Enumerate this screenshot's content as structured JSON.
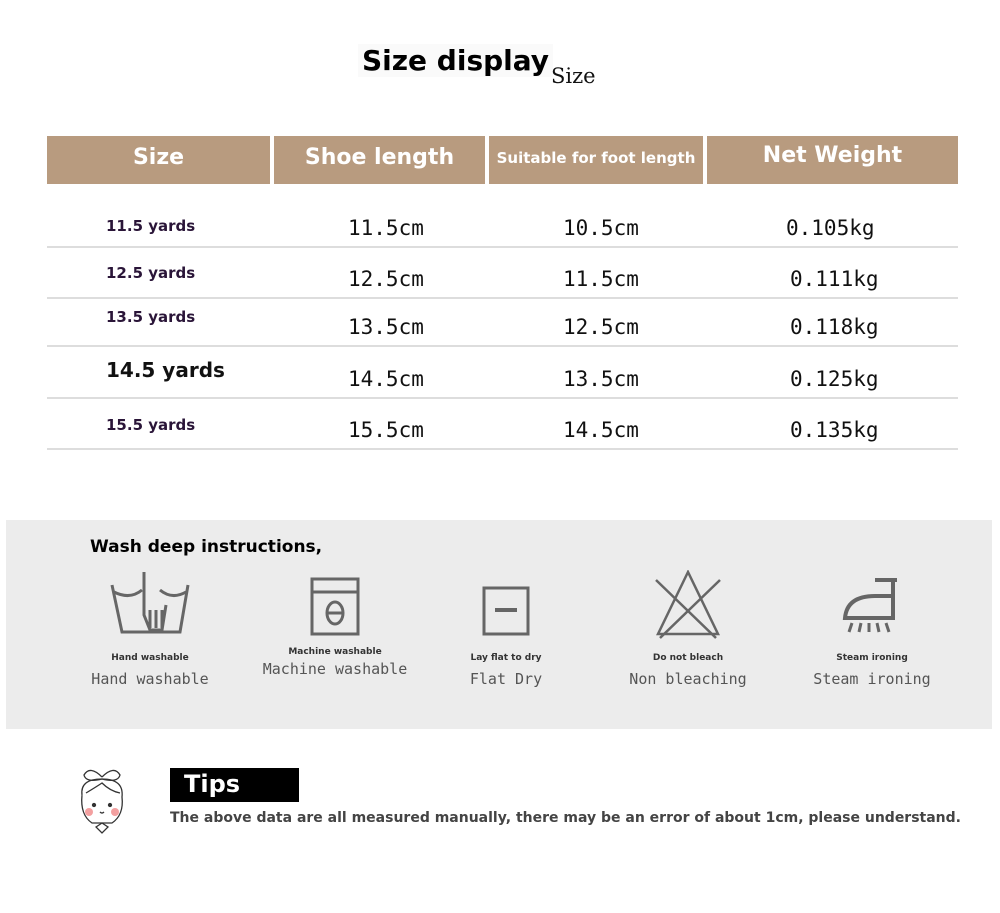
{
  "title": "Size display",
  "subtitle": "Size",
  "table": {
    "headers": [
      "Size",
      "Shoe length",
      "Suitable for foot length",
      "Net Weight"
    ],
    "rows": [
      [
        "11.5 yards",
        "11.5cm",
        "10.5cm",
        "0.105kg"
      ],
      [
        "12.5 yards",
        "12.5cm",
        "11.5cm",
        "0.111kg"
      ],
      [
        "13.5 yards",
        "13.5cm",
        "12.5cm",
        "0.118kg"
      ],
      [
        "14.5 yards",
        "14.5cm",
        "13.5cm",
        "0.125kg"
      ],
      [
        "15.5 yards",
        "15.5cm",
        "14.5cm",
        "0.135kg"
      ]
    ]
  },
  "header_color": "#b89b7f",
  "wash": {
    "title": "Wash deep instructions,",
    "items": [
      {
        "icon": "hand-wash-icon",
        "small": "Hand washable",
        "label": "Hand washable"
      },
      {
        "icon": "washing-machine-icon",
        "small": "Machine washable",
        "label": "Machine washable"
      },
      {
        "icon": "flat-dry-icon",
        "small": "Lay flat to dry",
        "label": "Flat Dry"
      },
      {
        "icon": "do-not-bleach-icon",
        "small": "Do not bleach",
        "label": "Non bleaching"
      },
      {
        "icon": "steam-iron-icon",
        "small": "Steam ironing",
        "label": "Steam ironing"
      }
    ]
  },
  "tips": {
    "label": "Tips",
    "text": "The above data are all measured manually, there may be an error of about 1cm, please understand."
  }
}
